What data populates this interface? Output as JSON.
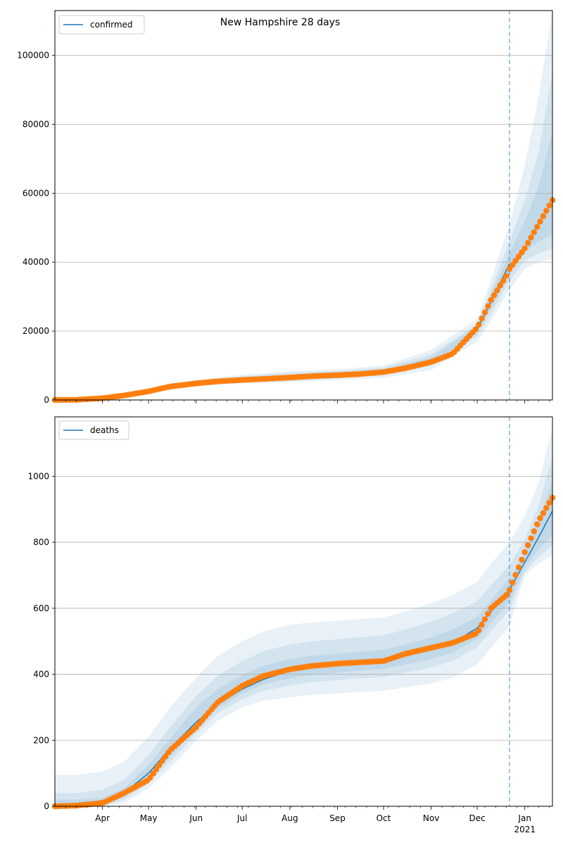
{
  "title": "New Hampshire 28 days",
  "chart_data": [
    {
      "type": "line",
      "title": "New Hampshire 28 days",
      "xlabel": "",
      "ylabel": "",
      "x_range": [
        "2020-03-01",
        "2021-01-19"
      ],
      "ylim": [
        0,
        113000
      ],
      "yticks": [
        0,
        20000,
        40000,
        60000,
        80000,
        100000
      ],
      "grid": "y",
      "legend": "top-left",
      "forecast_start": "2020-12-22",
      "colors": {
        "model": "#1f77b4",
        "observed": "#ff7f0e",
        "band": "#1f77b4"
      },
      "series": [
        {
          "name": "confirmed",
          "role": "model",
          "x": [
            "2020-03-01",
            "2020-03-15",
            "2020-04-01",
            "2020-04-15",
            "2020-05-01",
            "2020-05-15",
            "2020-06-01",
            "2020-06-15",
            "2020-07-01",
            "2020-07-15",
            "2020-08-01",
            "2020-08-15",
            "2020-09-01",
            "2020-09-15",
            "2020-10-01",
            "2020-10-15",
            "2020-11-01",
            "2020-11-15",
            "2020-12-01",
            "2020-12-10",
            "2020-12-22"
          ],
          "y": [
            0,
            50,
            500,
            1300,
            2500,
            3900,
            4900,
            5500,
            5900,
            6200,
            6500,
            6900,
            7200,
            7700,
            8300,
            9500,
            11300,
            13600,
            20500,
            28500,
            39500
          ]
        }
      ],
      "observed": {
        "x": [
          "2020-03-01",
          "2020-03-15",
          "2020-04-01",
          "2020-04-15",
          "2020-05-01",
          "2020-05-15",
          "2020-06-01",
          "2020-06-15",
          "2020-07-01",
          "2020-07-15",
          "2020-08-01",
          "2020-08-15",
          "2020-09-01",
          "2020-09-15",
          "2020-10-01",
          "2020-10-15",
          "2020-11-01",
          "2020-11-15",
          "2020-12-01",
          "2020-12-10",
          "2020-12-20",
          "2020-12-22",
          "2021-01-01",
          "2021-01-10",
          "2021-01-19"
        ],
        "y": [
          0,
          50,
          500,
          1300,
          2500,
          3900,
          4800,
          5400,
          5800,
          6100,
          6500,
          6900,
          7200,
          7500,
          8100,
          9200,
          11000,
          13400,
          21000,
          29000,
          36000,
          38000,
          44000,
          51000,
          58000
        ]
      },
      "bands": [
        {
          "x": [
            "2020-03-01",
            "2020-04-01",
            "2020-05-01",
            "2020-06-01",
            "2020-07-01",
            "2020-08-01",
            "2020-09-01",
            "2020-10-01",
            "2020-11-01",
            "2020-12-01",
            "2020-12-10",
            "2020-12-22",
            "2021-01-01",
            "2021-01-10",
            "2021-01-19"
          ],
          "lower": [
            0,
            400,
            1900,
            4000,
            4800,
            5200,
            5800,
            6400,
            8700,
            17000,
            23000,
            32000,
            38000,
            40000,
            41000
          ],
          "upper": [
            500,
            800,
            3100,
            5900,
            7300,
            8300,
            8900,
            10000,
            14500,
            23500,
            35000,
            51000,
            68000,
            88000,
            113000
          ]
        },
        {
          "x": [
            "2020-03-01",
            "2020-04-01",
            "2020-05-01",
            "2020-06-01",
            "2020-07-01",
            "2020-08-01",
            "2020-09-01",
            "2020-10-01",
            "2020-11-01",
            "2020-12-01",
            "2020-12-10",
            "2020-12-22",
            "2021-01-01",
            "2021-01-10",
            "2021-01-19"
          ],
          "lower": [
            0,
            450,
            2100,
            4300,
            5100,
            5600,
            6300,
            7200,
            9900,
            18500,
            25000,
            34500,
            40500,
            42500,
            44000
          ],
          "upper": [
            400,
            650,
            2900,
            5600,
            6900,
            7800,
            8400,
            9400,
            13200,
            22000,
            32000,
            46000,
            58000,
            72000,
            95000
          ]
        },
        {
          "x": [
            "2020-03-01",
            "2020-04-01",
            "2020-05-01",
            "2020-06-01",
            "2020-07-01",
            "2020-08-01",
            "2020-09-01",
            "2020-10-01",
            "2020-11-01",
            "2020-12-01",
            "2020-12-10",
            "2020-12-22",
            "2021-01-01",
            "2021-01-10",
            "2021-01-19"
          ],
          "lower": [
            0,
            480,
            2300,
            4600,
            5500,
            6000,
            6700,
            7700,
            10500,
            19500,
            26500,
            36500,
            43000,
            46000,
            48000
          ],
          "upper": [
            300,
            560,
            2700,
            5300,
            6400,
            7200,
            7800,
            8900,
            12300,
            21500,
            30500,
            42500,
            52000,
            62000,
            78000
          ]
        }
      ]
    },
    {
      "type": "line",
      "title": "",
      "xlabel": "",
      "ylabel": "",
      "x_range": [
        "2020-03-01",
        "2021-01-19"
      ],
      "ylim": [
        0,
        1180
      ],
      "yticks": [
        0,
        200,
        400,
        600,
        800,
        1000
      ],
      "grid": "y",
      "legend": "top-left",
      "forecast_start": "2020-12-22",
      "xticks": [
        {
          "date": "2020-04-01",
          "label": "Apr"
        },
        {
          "date": "2020-05-01",
          "label": "May"
        },
        {
          "date": "2020-06-01",
          "label": "Jun"
        },
        {
          "date": "2020-07-01",
          "label": "Jul"
        },
        {
          "date": "2020-08-01",
          "label": "Aug"
        },
        {
          "date": "2020-09-01",
          "label": "Sep"
        },
        {
          "date": "2020-10-01",
          "label": "Oct"
        },
        {
          "date": "2020-11-01",
          "label": "Nov"
        },
        {
          "date": "2020-12-01",
          "label": "Dec"
        },
        {
          "date": "2021-01-01",
          "label": "Jan"
        }
      ],
      "year_label": "2021",
      "colors": {
        "model": "#1f77b4",
        "observed": "#ff7f0e",
        "band": "#1f77b4"
      },
      "series": [
        {
          "name": "deaths",
          "role": "model",
          "x": [
            "2020-03-01",
            "2020-03-15",
            "2020-04-01",
            "2020-04-15",
            "2020-05-01",
            "2020-05-15",
            "2020-06-01",
            "2020-06-15",
            "2020-07-01",
            "2020-07-15",
            "2020-08-01",
            "2020-08-15",
            "2020-09-01",
            "2020-09-15",
            "2020-10-01",
            "2020-10-15",
            "2020-11-01",
            "2020-11-15",
            "2020-12-01",
            "2020-12-10",
            "2020-12-22",
            "2021-01-01",
            "2021-01-10",
            "2021-01-19"
          ],
          "y": [
            0,
            2,
            10,
            40,
            100,
            175,
            255,
            310,
            355,
            385,
            410,
            422,
            430,
            436,
            440,
            455,
            475,
            495,
            540,
            590,
            655,
            740,
            815,
            895
          ]
        }
      ],
      "observed": {
        "x": [
          "2020-03-01",
          "2020-03-15",
          "2020-04-01",
          "2020-04-15",
          "2020-05-01",
          "2020-05-15",
          "2020-06-01",
          "2020-06-15",
          "2020-07-01",
          "2020-07-15",
          "2020-08-01",
          "2020-08-15",
          "2020-09-01",
          "2020-09-15",
          "2020-10-01",
          "2020-10-15",
          "2020-11-01",
          "2020-11-15",
          "2020-12-01",
          "2020-12-10",
          "2020-12-20",
          "2020-12-22",
          "2021-01-01",
          "2021-01-10",
          "2021-01-19"
        ],
        "y": [
          0,
          2,
          10,
          40,
          80,
          170,
          240,
          315,
          365,
          395,
          415,
          425,
          432,
          436,
          440,
          462,
          480,
          495,
          525,
          600,
          640,
          655,
          770,
          865,
          935
        ]
      },
      "bands": [
        {
          "x": [
            "2020-03-01",
            "2020-03-15",
            "2020-04-01",
            "2020-04-15",
            "2020-05-01",
            "2020-05-15",
            "2020-06-01",
            "2020-06-15",
            "2020-07-01",
            "2020-07-15",
            "2020-08-01",
            "2020-08-15",
            "2020-09-01",
            "2020-09-15",
            "2020-10-01",
            "2020-10-15",
            "2020-11-01",
            "2020-11-15",
            "2020-12-01",
            "2020-12-10",
            "2020-12-22",
            "2021-01-01",
            "2021-01-10",
            "2021-01-19"
          ],
          "lower": [
            0,
            0,
            0,
            10,
            55,
            115,
            200,
            260,
            300,
            320,
            330,
            338,
            342,
            346,
            350,
            360,
            372,
            390,
            430,
            480,
            545,
            700,
            735,
            760
          ],
          "upper": [
            95,
            95,
            105,
            135,
            210,
            300,
            390,
            455,
            500,
            530,
            550,
            557,
            562,
            567,
            572,
            590,
            615,
            640,
            680,
            735,
            800,
            880,
            980,
            1150
          ]
        },
        {
          "x": [
            "2020-03-01",
            "2020-03-15",
            "2020-04-01",
            "2020-04-15",
            "2020-05-01",
            "2020-05-15",
            "2020-06-01",
            "2020-06-15",
            "2020-07-01",
            "2020-07-15",
            "2020-08-01",
            "2020-08-15",
            "2020-09-01",
            "2020-09-15",
            "2020-10-01",
            "2020-10-15",
            "2020-11-01",
            "2020-11-15",
            "2020-12-01",
            "2020-12-10",
            "2020-12-22",
            "2021-01-01",
            "2021-01-10",
            "2021-01-19"
          ],
          "lower": [
            0,
            0,
            0,
            20,
            70,
            135,
            220,
            282,
            325,
            350,
            366,
            376,
            382,
            388,
            392,
            405,
            420,
            440,
            482,
            530,
            595,
            710,
            755,
            790
          ],
          "upper": [
            40,
            40,
            50,
            80,
            155,
            240,
            335,
            395,
            440,
            470,
            490,
            500,
            506,
            512,
            518,
            536,
            560,
            585,
            622,
            670,
            730,
            810,
            910,
            1060
          ]
        },
        {
          "x": [
            "2020-03-01",
            "2020-03-15",
            "2020-04-01",
            "2020-04-15",
            "2020-05-01",
            "2020-05-15",
            "2020-06-01",
            "2020-06-15",
            "2020-07-01",
            "2020-07-15",
            "2020-08-01",
            "2020-08-15",
            "2020-09-01",
            "2020-09-15",
            "2020-10-01",
            "2020-10-15",
            "2020-11-01",
            "2020-11-15",
            "2020-12-01",
            "2020-12-10",
            "2020-12-22",
            "2021-01-01",
            "2021-01-10",
            "2021-01-19"
          ],
          "lower": [
            0,
            0,
            2,
            28,
            82,
            150,
            235,
            297,
            342,
            370,
            388,
            398,
            405,
            411,
            416,
            430,
            446,
            466,
            508,
            556,
            620,
            725,
            780,
            820
          ],
          "upper": [
            20,
            20,
            25,
            55,
            125,
            205,
            300,
            355,
            398,
            426,
            446,
            456,
            462,
            468,
            474,
            490,
            512,
            536,
            574,
            624,
            690,
            765,
            860,
            990
          ]
        }
      ]
    }
  ]
}
